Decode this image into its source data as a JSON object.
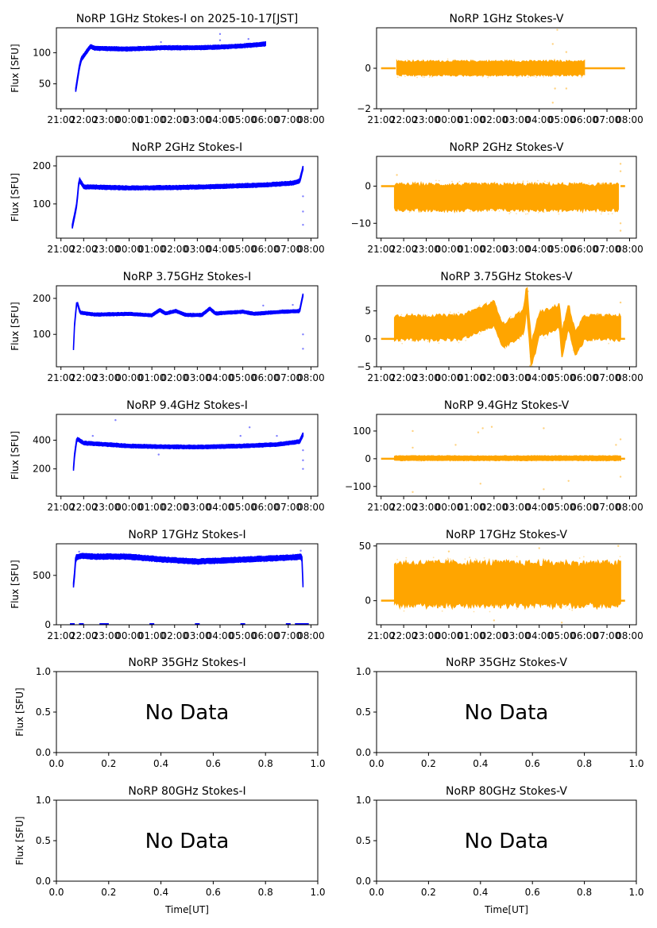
{
  "figure": {
    "colors": {
      "stokes_i": "#0000ff",
      "stokes_v": "#ffa500"
    },
    "time_ticks": [
      "21:00",
      "22:00",
      "23:00",
      "00:00",
      "01:00",
      "02:00",
      "03:00",
      "04:00",
      "05:00",
      "06:00",
      "07:00",
      "08:00"
    ],
    "no_data_label": "No Data",
    "ylabel": "Flux [SFU]",
    "xlabel": "Time[UT]"
  },
  "chart_data": [
    {
      "type": "scatter",
      "id": "1ghz-i",
      "title": "NoRP 1GHz Stokes-I on 2025-10-17[JST]",
      "ylabel": "Flux [SFU]",
      "xlabel": "",
      "ylim": [
        10,
        140
      ],
      "yticks": [
        50,
        100
      ],
      "xlim_hours": [
        -3.2,
        8.3
      ],
      "series_color": "stokes_i",
      "profile": [
        [
          -2.35,
          40
        ],
        [
          -2.2,
          75
        ],
        [
          -2.1,
          90
        ],
        [
          -1.9,
          100
        ],
        [
          -1.7,
          110
        ],
        [
          -1.5,
          107
        ],
        [
          0,
          106
        ],
        [
          1.5,
          108
        ],
        [
          3,
          108
        ],
        [
          4,
          109
        ],
        [
          5,
          111
        ],
        [
          6,
          114
        ]
      ],
      "band": 3,
      "outliers": [
        [
          1.4,
          117
        ],
        [
          4.0,
          130
        ],
        [
          4.0,
          120
        ],
        [
          5.25,
          122
        ]
      ]
    },
    {
      "type": "scatter",
      "id": "1ghz-v",
      "title": "NoRP 1GHz Stokes-V",
      "ylabel": "",
      "xlabel": "",
      "ylim": [
        -2,
        2
      ],
      "yticks": [
        -2,
        0
      ],
      "xlim_hours": [
        -3.2,
        8.3
      ],
      "series_color": "stokes_v",
      "profile": [
        [
          -3.0,
          0
        ],
        [
          -2.35,
          0
        ],
        [
          -2.3,
          0
        ],
        [
          6,
          0
        ],
        [
          8,
          0
        ]
      ],
      "noise_span": [
        -2.3,
        6.0
      ],
      "band": 0.35,
      "flat_segments": [
        [
          -3.0,
          -2.35
        ],
        [
          6.0,
          7.8
        ]
      ],
      "outliers": [
        [
          4.6,
          1.2
        ],
        [
          4.6,
          -1.7
        ],
        [
          4.8,
          1.9
        ],
        [
          4.7,
          -1.0
        ],
        [
          5.2,
          0.8
        ],
        [
          5.2,
          -1.0
        ]
      ]
    },
    {
      "type": "scatter",
      "id": "2ghz-i",
      "title": "NoRP 2GHz Stokes-I",
      "ylabel": "Flux [SFU]",
      "xlabel": "",
      "ylim": [
        10,
        225
      ],
      "yticks": [
        100,
        200
      ],
      "xlim_hours": [
        -3.2,
        8.3
      ],
      "series_color": "stokes_i",
      "profile": [
        [
          -2.5,
          40
        ],
        [
          -2.3,
          100
        ],
        [
          -2.2,
          165
        ],
        [
          -2.0,
          145
        ],
        [
          0,
          142
        ],
        [
          2,
          143
        ],
        [
          4,
          146
        ],
        [
          6,
          150
        ],
        [
          7.2,
          155
        ],
        [
          7.5,
          160
        ],
        [
          7.65,
          195
        ]
      ],
      "band": 5,
      "outliers": [
        [
          7.65,
          45
        ],
        [
          7.65,
          80
        ],
        [
          7.65,
          120
        ]
      ]
    },
    {
      "type": "scatter",
      "id": "2ghz-v",
      "title": "NoRP 2GHz Stokes-V",
      "ylabel": "",
      "xlabel": "",
      "ylim": [
        -14,
        8
      ],
      "yticks": [
        -10,
        0
      ],
      "xlim_hours": [
        -3.2,
        8.3
      ],
      "series_color": "stokes_v",
      "profile": [
        [
          -2.4,
          -3
        ],
        [
          7.5,
          -3
        ]
      ],
      "noise_span": [
        -2.4,
        7.5
      ],
      "band": 3.5,
      "flat_segments": [
        [
          -3.0,
          -2.4
        ],
        [
          7.6,
          7.8
        ]
      ],
      "outliers": [
        [
          7.6,
          6
        ],
        [
          7.6,
          4
        ],
        [
          7.6,
          -12
        ],
        [
          7.6,
          -10
        ],
        [
          -2.3,
          3
        ]
      ]
    },
    {
      "type": "scatter",
      "id": "375ghz-i",
      "title": "NoRP 3.75GHz Stokes-I",
      "ylabel": "Flux [SFU]",
      "xlabel": "",
      "ylim": [
        10,
        235
      ],
      "yticks": [
        100,
        200
      ],
      "xlim_hours": [
        -3.2,
        8.3
      ],
      "series_color": "stokes_i",
      "profile": [
        [
          -2.45,
          60
        ],
        [
          -2.4,
          130
        ],
        [
          -2.3,
          192
        ],
        [
          -2.15,
          160
        ],
        [
          -1.5,
          155
        ],
        [
          0,
          157
        ],
        [
          1.0,
          153
        ],
        [
          1.35,
          168
        ],
        [
          1.6,
          158
        ],
        [
          2.05,
          165
        ],
        [
          2.5,
          154
        ],
        [
          3.2,
          154
        ],
        [
          3.55,
          172
        ],
        [
          3.8,
          158
        ],
        [
          5.0,
          163
        ],
        [
          5.5,
          157
        ],
        [
          6.5,
          162
        ],
        [
          7.5,
          165
        ],
        [
          7.65,
          210
        ]
      ],
      "band": 4,
      "outliers": [
        [
          7.65,
          60
        ],
        [
          7.65,
          100
        ],
        [
          5.9,
          180
        ],
        [
          7.2,
          182
        ]
      ]
    },
    {
      "type": "scatter",
      "id": "375ghz-v",
      "title": "NoRP 3.75GHz Stokes-V",
      "ylabel": "",
      "xlabel": "",
      "ylim": [
        -5,
        9.5
      ],
      "yticks": [
        -5,
        0,
        5
      ],
      "xlim_hours": [
        -3.2,
        8.3
      ],
      "series_color": "stokes_v",
      "profile": [
        [
          -2.4,
          2
        ],
        [
          0.5,
          2
        ],
        [
          2.0,
          4.5
        ],
        [
          2.4,
          0.5
        ],
        [
          3.3,
          3
        ],
        [
          3.45,
          7.5
        ],
        [
          3.65,
          -3
        ],
        [
          4.0,
          2.5
        ],
        [
          4.9,
          4
        ],
        [
          5.0,
          -1
        ],
        [
          5.3,
          4
        ],
        [
          5.6,
          -1
        ],
        [
          6.0,
          2
        ],
        [
          7.5,
          2
        ]
      ],
      "noise_span": [
        -2.4,
        7.6
      ],
      "band": 2.2,
      "flat_segments": [
        [
          -3.0,
          -2.4
        ],
        [
          7.6,
          7.8
        ]
      ],
      "outliers": [
        [
          3.5,
          8.5
        ],
        [
          3.6,
          -4.8
        ],
        [
          7.6,
          6.5
        ]
      ]
    },
    {
      "type": "scatter",
      "id": "94ghz-i",
      "title": "NoRP 9.4GHz Stokes-I",
      "ylabel": "Flux [SFU]",
      "xlabel": "",
      "ylim": [
        10,
        580
      ],
      "yticks": [
        200,
        400
      ],
      "xlim_hours": [
        -3.2,
        8.3
      ],
      "series_color": "stokes_i",
      "profile": [
        [
          -2.45,
          200
        ],
        [
          -2.4,
          300
        ],
        [
          -2.3,
          410
        ],
        [
          -2.0,
          380
        ],
        [
          0,
          360
        ],
        [
          1.5,
          355
        ],
        [
          3,
          352
        ],
        [
          5,
          360
        ],
        [
          6.5,
          370
        ],
        [
          7.5,
          390
        ],
        [
          7.65,
          440
        ]
      ],
      "band": 12,
      "outliers": [
        [
          -0.6,
          540
        ],
        [
          5.3,
          490
        ],
        [
          1.3,
          300
        ],
        [
          7.65,
          200
        ],
        [
          7.65,
          260
        ],
        [
          7.65,
          330
        ],
        [
          6.5,
          430
        ],
        [
          -1.6,
          430
        ],
        [
          4.9,
          430
        ]
      ]
    },
    {
      "type": "scatter",
      "id": "94ghz-v",
      "title": "NoRP 9.4GHz Stokes-V",
      "ylabel": "",
      "xlabel": "",
      "ylim": [
        -135,
        160
      ],
      "yticks": [
        -100,
        0,
        100
      ],
      "xlim_hours": [
        -3.2,
        8.3
      ],
      "series_color": "stokes_v",
      "profile": [
        [
          -2.4,
          2
        ],
        [
          7.6,
          2
        ]
      ],
      "noise_span": [
        -2.4,
        7.6
      ],
      "band": 8,
      "flat_segments": [
        [
          -3.0,
          -2.4
        ],
        [
          7.6,
          7.8
        ]
      ],
      "outliers": [
        [
          -1.6,
          100
        ],
        [
          -1.6,
          -120
        ],
        [
          1.3,
          95
        ],
        [
          1.5,
          110
        ],
        [
          1.4,
          -90
        ],
        [
          1.9,
          115
        ],
        [
          4.2,
          110
        ],
        [
          4.2,
          -110
        ],
        [
          7.4,
          50
        ],
        [
          7.6,
          70
        ],
        [
          7.6,
          -65
        ],
        [
          -1.6,
          40
        ],
        [
          5.3,
          -80
        ],
        [
          0.3,
          50
        ]
      ]
    },
    {
      "type": "scatter",
      "id": "17ghz-i",
      "title": "NoRP 17GHz Stokes-I",
      "ylabel": "Flux [SFU]",
      "xlabel": "",
      "ylim": [
        0,
        820
      ],
      "yticks": [
        0,
        500
      ],
      "xlim_hours": [
        -3.2,
        8.3
      ],
      "series_color": "stokes_i",
      "profile": [
        [
          -2.45,
          400
        ],
        [
          -2.4,
          520
        ],
        [
          -2.35,
          680
        ],
        [
          -2.1,
          700
        ],
        [
          -1.5,
          690
        ],
        [
          0,
          690
        ],
        [
          1.5,
          660
        ],
        [
          3,
          640
        ],
        [
          5,
          660
        ],
        [
          7,
          680
        ],
        [
          7.6,
          690
        ],
        [
          7.65,
          400
        ]
      ],
      "band": 25,
      "outliers": [
        [
          -2.2,
          740
        ],
        [
          7.55,
          750
        ]
      ],
      "zero_marks": [
        -2.5,
        -2.1,
        -1.2,
        -1.0,
        1.0,
        3.0,
        5.0,
        7.0,
        7.4,
        7.6,
        7.8
      ]
    },
    {
      "type": "scatter",
      "id": "17ghz-v",
      "title": "NoRP 17GHz Stokes-V",
      "ylabel": "",
      "xlabel": "",
      "ylim": [
        -22,
        52
      ],
      "yticks": [
        0,
        50
      ],
      "xlim_hours": [
        -3.2,
        8.3
      ],
      "series_color": "stokes_v",
      "profile": [
        [
          -2.4,
          15
        ],
        [
          7.6,
          15
        ]
      ],
      "noise_span": [
        -2.4,
        7.6
      ],
      "band": 20,
      "flat_segments": [
        [
          -3.0,
          -2.4
        ],
        [
          7.6,
          7.8
        ]
      ],
      "outliers": [
        [
          0,
          45
        ],
        [
          4,
          48
        ],
        [
          7.5,
          50
        ],
        [
          2,
          -18
        ],
        [
          5,
          -20
        ]
      ]
    },
    {
      "type": "scatter",
      "id": "35ghz-i",
      "title": "NoRP 35GHz Stokes-I",
      "no_data": true,
      "ylabel": "Flux [SFU]",
      "xlabel": "",
      "ylim": [
        0,
        1
      ],
      "xlim": [
        0,
        1
      ],
      "yticks": [
        "0.0",
        "0.5",
        "1.0"
      ],
      "xticks": [
        "0.0",
        "0.2",
        "0.4",
        "0.6",
        "0.8",
        "1.0"
      ]
    },
    {
      "type": "scatter",
      "id": "35ghz-v",
      "title": "NoRP 35GHz Stokes-V",
      "no_data": true,
      "ylabel": "",
      "xlabel": "",
      "ylim": [
        0,
        1
      ],
      "xlim": [
        0,
        1
      ],
      "yticks": [
        "0.0",
        "0.5",
        "1.0"
      ],
      "xticks": [
        "0.0",
        "0.2",
        "0.4",
        "0.6",
        "0.8",
        "1.0"
      ]
    },
    {
      "type": "scatter",
      "id": "80ghz-i",
      "title": "NoRP 80GHz Stokes-I",
      "no_data": true,
      "ylabel": "Flux [SFU]",
      "xlabel": "Time[UT]",
      "ylim": [
        0,
        1
      ],
      "xlim": [
        0,
        1
      ],
      "yticks": [
        "0.0",
        "0.5",
        "1.0"
      ],
      "xticks": [
        "0.0",
        "0.2",
        "0.4",
        "0.6",
        "0.8",
        "1.0"
      ]
    },
    {
      "type": "scatter",
      "id": "80ghz-v",
      "title": "NoRP 80GHz Stokes-V",
      "no_data": true,
      "ylabel": "",
      "xlabel": "Time[UT]",
      "ylim": [
        0,
        1
      ],
      "xlim": [
        0,
        1
      ],
      "yticks": [
        "0.0",
        "0.5",
        "1.0"
      ],
      "xticks": [
        "0.0",
        "0.2",
        "0.4",
        "0.6",
        "0.8",
        "1.0"
      ]
    }
  ]
}
